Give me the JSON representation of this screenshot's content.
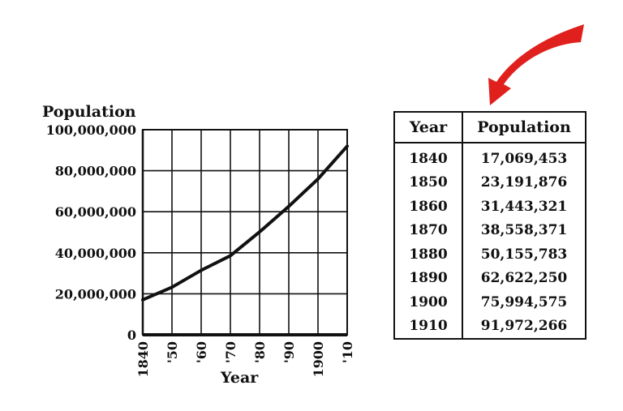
{
  "chart_data": {
    "type": "line",
    "ylabel": "Population",
    "xlabel": "Year",
    "x": [
      1840,
      1850,
      1860,
      1870,
      1880,
      1890,
      1900,
      1910
    ],
    "x_tick_labels": [
      "1840",
      "'50",
      "'60",
      "'70",
      "'80",
      "'90",
      "1900",
      "'10"
    ],
    "y_tick_labels": [
      "0",
      "20,000,000",
      "40,000,000",
      "60,000,000",
      "80,000,000",
      "100,000,000"
    ],
    "y_ticks": [
      0,
      20000000,
      40000000,
      60000000,
      80000000,
      100000000
    ],
    "ylim": [
      0,
      100000000
    ],
    "xlim": [
      1840,
      1910
    ],
    "grid": true,
    "series": [
      {
        "values": [
          17069453,
          23191876,
          31443321,
          38558371,
          50155783,
          62622250,
          75994575,
          91972266
        ]
      }
    ]
  },
  "table": {
    "headers": [
      "Year",
      "Population"
    ],
    "rows": [
      [
        "1840",
        "17,069,453"
      ],
      [
        "1850",
        "23,191,876"
      ],
      [
        "1860",
        "31,443,321"
      ],
      [
        "1870",
        "38,558,371"
      ],
      [
        "1880",
        "50,155,783"
      ],
      [
        "1890",
        "62,622,250"
      ],
      [
        "1900",
        "75,994,575"
      ],
      [
        "1910",
        "91,972,266"
      ]
    ]
  },
  "colors": {
    "line": "#111111",
    "grid": "#111111",
    "arrow": "#e0201c"
  },
  "icons": {
    "arrow": "red-curved-arrow-icon"
  }
}
